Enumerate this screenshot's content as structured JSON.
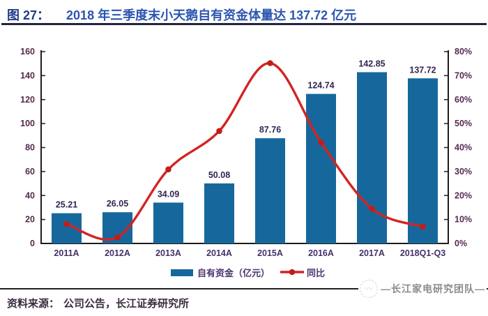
{
  "header": {
    "figure_label": "图 27：",
    "title": "2018 年三季度末小天鹅自有资金体量达 137.72 亿元"
  },
  "chart_data": {
    "type": "bar",
    "subtype": "bar-with-line-dual-axis",
    "title": "2018 年三季度末小天鹅自有资金体量达 137.72 亿元",
    "categories": [
      "2011A",
      "2012A",
      "2013A",
      "2014A",
      "2015A",
      "2016A",
      "2017A",
      "2018Q1-Q3"
    ],
    "series": [
      {
        "name": "自有资金（亿元）",
        "type": "bar",
        "axis": "left",
        "values": [
          25.21,
          26.05,
          34.09,
          50.08,
          87.76,
          124.74,
          142.85,
          137.72
        ],
        "labels": [
          "25.21",
          "26.05",
          "34.09",
          "50.08",
          "87.76",
          "124.74",
          "142.85",
          "137.72"
        ]
      },
      {
        "name": "同比",
        "type": "line",
        "axis": "right",
        "values": [
          8.1,
          2.6,
          30.9,
          46.9,
          75.2,
          42.1,
          14.5,
          7.0
        ]
      }
    ],
    "left_axis": {
      "min": 0,
      "max": 160,
      "step": 20,
      "tick_labels": [
        "0",
        "20",
        "40",
        "60",
        "80",
        "100",
        "120",
        "140",
        "160"
      ]
    },
    "right_axis": {
      "min": 0,
      "max": 80,
      "step": 10,
      "tick_labels": [
        "0%",
        "10%",
        "20%",
        "30%",
        "40%",
        "50%",
        "60%",
        "70%",
        "80%"
      ]
    },
    "legend": {
      "position": "bottom",
      "entries": [
        "自有资金（亿元）",
        "同比"
      ]
    },
    "grid": false
  },
  "footer": {
    "source_label": "资料来源：",
    "source_text": "公司公告，长江证券研究所",
    "watermark": "—长江家电研究团队—"
  },
  "colors": {
    "bar": "#16689c",
    "line": "#d32422",
    "marker": "#c21d1a",
    "title_label": "#203c85",
    "title_text": "#2c55b0",
    "axis_line": "#1c1c1c",
    "left_tick_text": "#562a48",
    "right_tick_text": "#562a4e",
    "xlabel_text": "#44316a",
    "bar_label": "#33254f",
    "legend_text": "#4a3570",
    "source_text": "#3b2c3f"
  }
}
